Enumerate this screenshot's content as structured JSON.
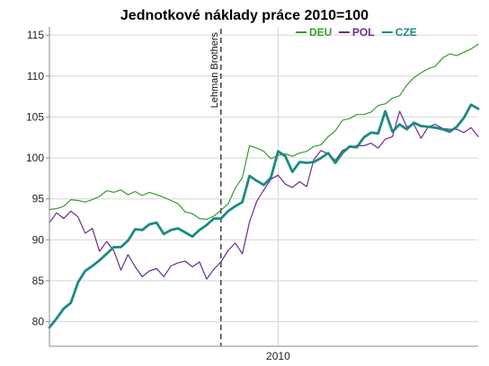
{
  "chart_data": {
    "type": "line",
    "title": "Jednotkové náklady práce 2010=100",
    "xlabel": "",
    "ylabel": "",
    "ylim": [
      77,
      116
    ],
    "yticks": [
      80,
      85,
      90,
      95,
      100,
      105,
      110,
      115
    ],
    "x_tick_labels": [
      {
        "label": "2010",
        "index": 32
      }
    ],
    "grid": {
      "y": true,
      "x": true
    },
    "legend_position": "top-right",
    "annotations": [
      {
        "label": "Lehman Brothers",
        "index": 24,
        "style": "dashed-vertical-line"
      }
    ],
    "series": [
      {
        "name": "DEU",
        "color": "#3a9a2e",
        "values": [
          93.7,
          93.8,
          94.1,
          94.9,
          94.8,
          94.6,
          94.9,
          95.3,
          96.0,
          95.8,
          96.1,
          95.5,
          95.9,
          95.4,
          95.8,
          95.5,
          95.2,
          94.8,
          94.4,
          93.4,
          93.2,
          92.6,
          92.5,
          92.9,
          93.6,
          94.4,
          96.3,
          97.6,
          101.5,
          101.2,
          100.8,
          99.9,
          100.3,
          100.5,
          100.2,
          100.6,
          100.8,
          101.4,
          101.6,
          102.6,
          103.3,
          104.6,
          104.8,
          105.3,
          105.3,
          105.6,
          106.4,
          106.6,
          107.3,
          107.6,
          108.9,
          109.8,
          110.4,
          110.9,
          111.2,
          112.2,
          112.7,
          112.5,
          112.9,
          113.3,
          113.9
        ]
      },
      {
        "name": "POL",
        "color": "#6a2c91",
        "values": [
          92.1,
          93.3,
          92.6,
          93.5,
          92.8,
          90.8,
          91.4,
          88.6,
          89.8,
          88.7,
          86.3,
          88.2,
          86.7,
          85.5,
          86.2,
          86.5,
          85.5,
          86.8,
          87.2,
          87.4,
          86.7,
          87.3,
          85.2,
          86.4,
          87.3,
          88.7,
          89.6,
          88.3,
          92.2,
          94.7,
          96.1,
          97.4,
          97.9,
          96.8,
          96.4,
          97.1,
          96.5,
          99.8,
          100.9,
          100.5,
          99.7,
          100.9,
          101.3,
          101.5,
          101.5,
          101.8,
          101.2,
          102.3,
          102.6,
          105.7,
          103.8,
          104.1,
          102.4,
          103.8,
          104.1,
          103.6,
          103.5,
          103.5,
          103.1,
          103.7,
          102.6
        ]
      },
      {
        "name": "CZE",
        "color": "#1b8a84",
        "values": [
          79.3,
          80.4,
          81.6,
          82.3,
          84.8,
          86.2,
          86.8,
          87.5,
          88.3,
          89.1,
          89.1,
          89.9,
          91.3,
          91.2,
          91.9,
          92.1,
          90.7,
          91.2,
          91.4,
          90.9,
          90.4,
          91.2,
          91.8,
          92.6,
          92.6,
          93.5,
          94.1,
          94.6,
          97.8,
          97.2,
          96.7,
          97.6,
          100.8,
          100.2,
          98.3,
          99.5,
          99.4,
          99.5,
          100.0,
          100.6,
          99.4,
          100.6,
          101.4,
          101.3,
          102.5,
          103.1,
          103.0,
          105.7,
          103.2,
          104.1,
          103.5,
          104.3,
          103.9,
          103.8,
          103.7,
          103.5,
          103.2,
          103.8,
          104.9,
          106.5,
          106.0
        ]
      }
    ]
  }
}
